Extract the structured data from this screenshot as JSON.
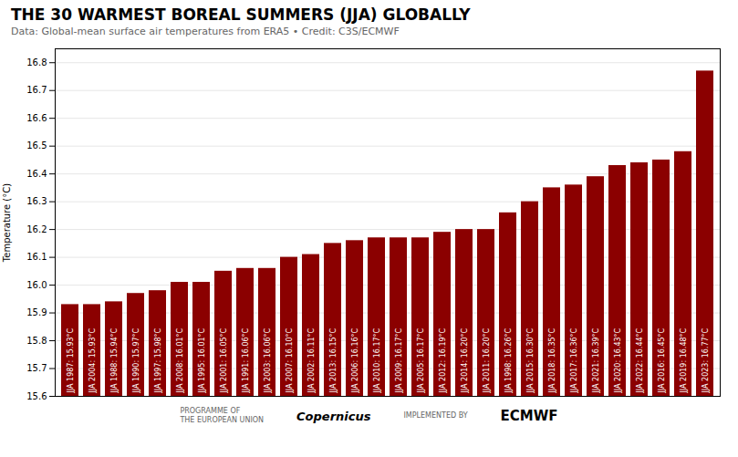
{
  "chart_data": {
    "type": "bar",
    "title": "THE 30 WARMEST BOREAL SUMMERS (JJA) GLOBALLY",
    "subtitle": "Data: Global-mean surface air temperatures from ERA5  •  Credit: C3S/ECMWF",
    "ylabel": "Temperature (°C)",
    "annotations": [
      "PROGRAMME OF\nTHE EUROPEAN UNION",
      "Copernicus",
      "IMPLEMENTED BY",
      "ECMWF"
    ],
    "categories": [
      "JJA 1987: 15.93°C",
      "JJA 2004: 15.93°C",
      "JJA 1988: 15.94°C",
      "JJA 1990: 15.97°C",
      "JJA 1997: 15.98°C",
      "JJA 2008: 16.01°C",
      "JJA 1995: 16.01°C",
      "JJA 2001: 16.05°C",
      "JJA 1991: 16.06°C",
      "JJA 2003: 16.06°C",
      "JJA 2007: 16.10°C",
      "JJA 2002: 16.11°C",
      "JJA 2013: 16.15°C",
      "JJA 2006: 16.16°C",
      "JJA 2010: 16.17°C",
      "JJA 2009: 16.17°C",
      "JJA 2005: 16.17°C",
      "JJA 2012: 16.19°C",
      "JJA 2014: 16.20°C",
      "JJA 2011: 16.20°C",
      "JJA 1998: 16.26°C",
      "JJA 2015: 16.30°C",
      "JJA 2018: 16.35°C",
      "JJA 2017: 16.36°C",
      "JJA 2021: 16.39°C",
      "JJA 2020: 16.43°C",
      "JJA 2022: 16.44°C",
      "JJA 2016: 16.45°C",
      "JJA 2019: 16.48°C",
      "JJA 2023: 16.77°C"
    ],
    "values": [
      15.93,
      15.93,
      15.94,
      15.97,
      15.98,
      16.01,
      16.01,
      16.05,
      16.06,
      16.06,
      16.1,
      16.11,
      16.15,
      16.16,
      16.17,
      16.17,
      16.17,
      16.19,
      16.2,
      16.2,
      16.26,
      16.3,
      16.35,
      16.36,
      16.39,
      16.43,
      16.44,
      16.45,
      16.48,
      16.77
    ],
    "color": "#8b0000",
    "ylim": [
      15.6,
      16.85
    ],
    "yticks": [
      15.6,
      15.7,
      15.8,
      15.9,
      {
        "value": 16,
        "label": "16.0"
      },
      16.1,
      16.2,
      16.3,
      16.4,
      16.5,
      16.6,
      16.7,
      16.8
    ],
    "grid": true,
    "tick_labels": "y"
  }
}
